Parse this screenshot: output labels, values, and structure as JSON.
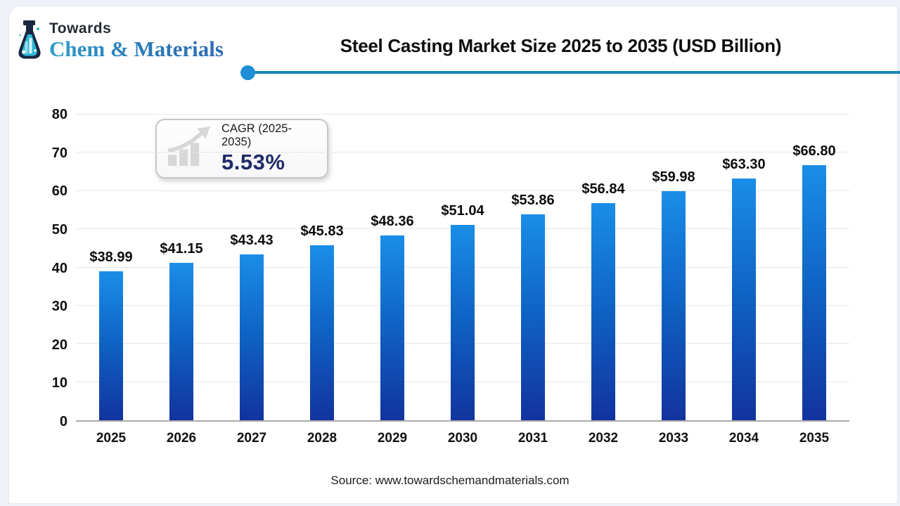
{
  "brand": {
    "towards": "Towards",
    "name": "Chem & Materials"
  },
  "header": {
    "title": "Steel Casting Market Size 2025 to 2035 (USD Billion)"
  },
  "cagr": {
    "label": "CAGR (2025-2035)",
    "value": "5.53%"
  },
  "footer": {
    "source": "Source: www.towardschemandmaterials.com"
  },
  "colors": {
    "divider_line": "#1a85b8",
    "divider_dot": "#1e8ed6",
    "bar_top": "#1a8ee8",
    "bar_bottom": "#12339e",
    "cagr_value": "#1f2c66",
    "brand_blue": "#2e86bb"
  },
  "chart_data": {
    "type": "bar",
    "title": "Steel Casting Market Size 2025 to 2035 (USD Billion)",
    "categories": [
      "2025",
      "2026",
      "2027",
      "2028",
      "2029",
      "2030",
      "2031",
      "2032",
      "2033",
      "2034",
      "2035"
    ],
    "values": [
      38.99,
      41.15,
      43.43,
      45.83,
      48.36,
      51.04,
      53.86,
      56.84,
      59.98,
      63.3,
      66.8
    ],
    "value_prefix": "$",
    "xlabel": "",
    "ylabel": "",
    "ylim": [
      0,
      80
    ],
    "ytick_step": 10,
    "grid": true,
    "legend": "none"
  }
}
